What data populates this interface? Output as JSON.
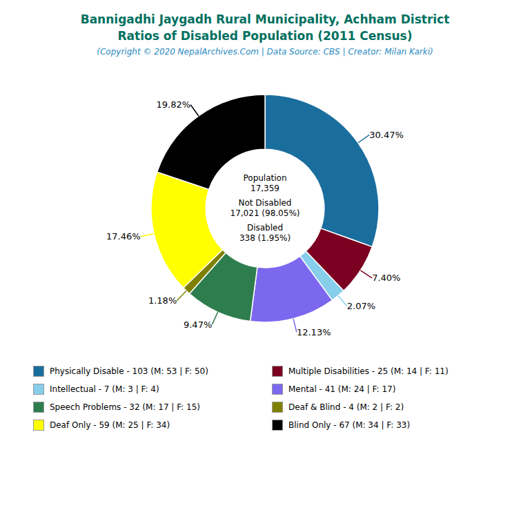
{
  "chart_data": {
    "type": "pie",
    "title": "Bannigadhi Jaygadh Rural Municipality, Achham District\nRatios of Disabled Population (2011 Census)",
    "subtitle": "(Copyright © 2020 NepalArchives.Com | Data Source: CBS | Creator: Milan Karki)",
    "categories": [
      "Physically Disable - 103 (M: 53 | F: 50)",
      "Multiple Disabilities - 25 (M: 14 | F: 11)",
      "Intellectual - 7 (M: 3 | F: 4)",
      "Mental - 41 (M: 24 | F: 17)",
      "Speech Problems - 32 (M: 17 | F: 15)",
      "Deaf & Blind - 4 (M: 2 | F: 2)",
      "Deaf Only - 59 (M: 25 | F: 34)",
      "Blind Only - 67 (M: 34 | F: 33)"
    ],
    "values": [
      30.47,
      7.4,
      2.07,
      12.13,
      9.47,
      1.18,
      17.46,
      19.82
    ],
    "value_labels": [
      "30.47%",
      "7.40%",
      "2.07%",
      "12.13%",
      "9.47%",
      "1.18%",
      "17.46%",
      "19.82%"
    ],
    "colors": [
      "#1a6e9e",
      "#7b0021",
      "#87ceeb",
      "#7b68ee",
      "#2e7d4f",
      "#808000",
      "#ffff00",
      "#000000"
    ],
    "annotations": [
      "Population\n17,359",
      "Not Disabled\n17,021 (98.05%)",
      "Disabled\n338 (1.95%)"
    ],
    "data_labels": true,
    "legend": "bottom"
  }
}
